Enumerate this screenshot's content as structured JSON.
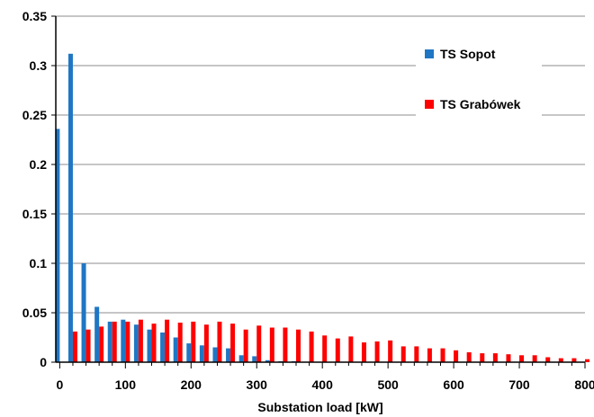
{
  "chart_data": {
    "type": "bar",
    "title": "",
    "xlabel": "Substation load [kW]",
    "ylabel": "",
    "xlim": [
      -6,
      800
    ],
    "ylim": [
      0,
      0.35
    ],
    "x_ticks": [
      0,
      100,
      200,
      300,
      400,
      500,
      600,
      700,
      800
    ],
    "y_ticks": [
      0,
      0.05,
      0.1,
      0.15,
      0.2,
      0.25,
      0.3,
      0.35
    ],
    "x_tick_labels": [
      "0",
      "100",
      "200",
      "300",
      "400",
      "500",
      "600",
      "700",
      "800"
    ],
    "y_tick_labels": [
      "0",
      "0.05",
      "0.1",
      "0.15",
      "0.2",
      "0.25",
      "0.3",
      "0.35"
    ],
    "grid": "horizontal",
    "legend_position": "top-right",
    "x": [
      0,
      20,
      40,
      60,
      80,
      100,
      120,
      140,
      160,
      180,
      200,
      220,
      240,
      260,
      280,
      300,
      320,
      340,
      360,
      380,
      400,
      420,
      440,
      460,
      480,
      500,
      520,
      540,
      560,
      580,
      600,
      620,
      640,
      660,
      680,
      700,
      720,
      740,
      760,
      780,
      800
    ],
    "series": [
      {
        "name": "TS Sopot",
        "color": "#1f77c4",
        "values": [
          0.236,
          0.312,
          0.1,
          0.056,
          0.041,
          0.043,
          0.038,
          0.033,
          0.03,
          0.025,
          0.019,
          0.017,
          0.015,
          0.014,
          0.007,
          0.006,
          0.002,
          0.001,
          0.001,
          0,
          0,
          0,
          0,
          0,
          0,
          0,
          0,
          0,
          0,
          0,
          0,
          0,
          0,
          0,
          0,
          0,
          0,
          0,
          0,
          0,
          0
        ]
      },
      {
        "name": "TS Grabówek",
        "color": "#ff0000",
        "values": [
          0,
          0.031,
          0.033,
          0.036,
          0.041,
          0.041,
          0.043,
          0.039,
          0.043,
          0.04,
          0.041,
          0.038,
          0.041,
          0.039,
          0.033,
          0.037,
          0.035,
          0.035,
          0.033,
          0.031,
          0.027,
          0.024,
          0.026,
          0.02,
          0.021,
          0.022,
          0.016,
          0.016,
          0.014,
          0.014,
          0.012,
          0.01,
          0.009,
          0.009,
          0.008,
          0.007,
          0.007,
          0.005,
          0.004,
          0.004,
          0.003
        ]
      }
    ]
  }
}
